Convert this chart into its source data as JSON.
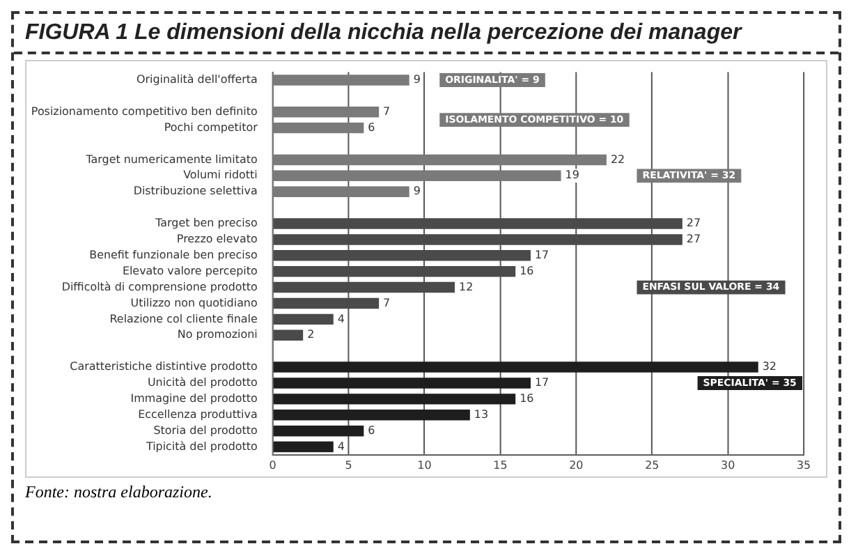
{
  "chart_data": {
    "type": "bar",
    "orientation": "horizontal",
    "title": "FIGURA 1 Le dimensioni della nicchia nella percezione dei manager",
    "categories": [
      "Originalità dell'offerta",
      null,
      "Posizionamento competitivo ben definito",
      "Pochi competitor",
      null,
      "Target numericamente limitato",
      "Volumi ridotti",
      "Distribuzione selettiva",
      null,
      "Target ben preciso",
      "Prezzo elevato",
      "Benefit funzionale ben preciso",
      "Elevato valore percepito",
      "Difficoltà di comprensione prodotto",
      "Utilizzo non quotidiano",
      "Relazione col cliente finale",
      "No promozioni",
      null,
      "Caratteristiche distintive prodotto",
      "Unicità del prodotto",
      "Immagine del prodotto",
      "Eccellenza produttiva",
      "Storia del prodotto",
      "Tipicità del prodotto"
    ],
    "values": [
      9,
      null,
      7,
      6,
      null,
      22,
      19,
      9,
      null,
      27,
      27,
      17,
      16,
      12,
      7,
      4,
      2,
      null,
      32,
      17,
      16,
      13,
      6,
      4
    ],
    "colors": [
      "#7a7a7a",
      "#7a7a7a",
      "#7a7a7a",
      "#7a7a7a",
      "#7a7a7a",
      "#7a7a7a",
      "#7a7a7a",
      "#7a7a7a",
      "#4a4a4a",
      "#4a4a4a",
      "#4a4a4a",
      "#4a4a4a",
      "#4a4a4a",
      "#4a4a4a",
      "#4a4a4a",
      "#4a4a4a",
      "#4a4a4a",
      "#1e1e1e",
      "#1e1e1e",
      "#1e1e1e",
      "#1e1e1e",
      "#1e1e1e",
      "#1e1e1e",
      "#1e1e1e"
    ],
    "xlim": [
      0,
      35
    ],
    "xticks": [
      0,
      5,
      10,
      15,
      20,
      25,
      30,
      35
    ],
    "grid": "x",
    "data_labels": true,
    "annotations": [
      "ORIGINALITA' = 9",
      "ISOLAMENTO COMPETITIVO = 10",
      "RELATIVITA' = 32",
      "ENFASI SUL VALORE = 34",
      "SPECIALITA' = 35",
      "Fonte: nostra elaborazione."
    ]
  }
}
